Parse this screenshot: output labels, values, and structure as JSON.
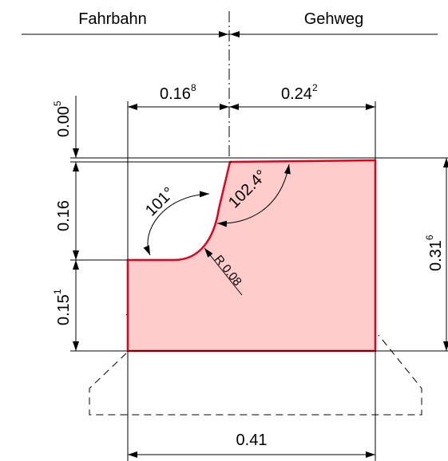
{
  "labels": {
    "left_zone": "Fahrbahn",
    "right_zone": "Gehweg",
    "top_width_left": "0.16",
    "top_width_left_sup": "8",
    "top_width_right": "0.24",
    "top_width_right_sup": "2",
    "vertical_offset": "0.00",
    "vertical_offset_sup": "5",
    "upper_height": "0.16",
    "lower_height": "0.15",
    "lower_height_sup": "1",
    "total_height": "0.31",
    "total_height_sup": "6",
    "bottom_width": "0.41",
    "angle_curb": "101°",
    "angle_top": "102.4°",
    "radius": "R 0.08"
  },
  "colors": {
    "fill": "#ffcccc",
    "outline": "#e0001b",
    "line": "#000000"
  }
}
